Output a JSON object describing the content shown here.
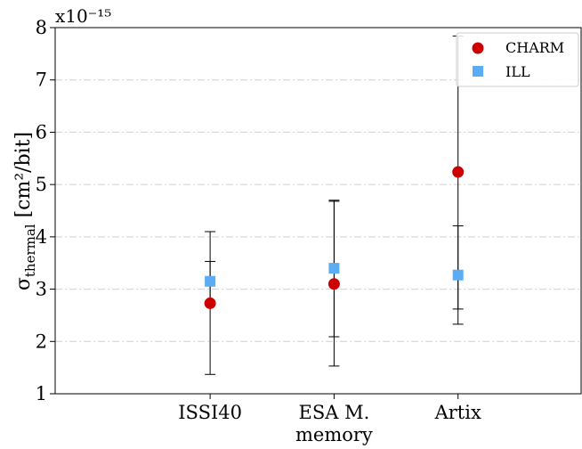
{
  "chart_data": {
    "type": "scatter",
    "categories": [
      "ISSI40",
      "ESA M.\nmemory",
      "Artix"
    ],
    "x": [
      1,
      2,
      3
    ],
    "xlim": [
      -0.25,
      4.0
    ],
    "ylim": [
      1,
      8
    ],
    "yticks": [
      1,
      2,
      3,
      4,
      5,
      6,
      7,
      8
    ],
    "y_multiplier": "x10⁻¹⁵",
    "ylabel": {
      "main": "σ",
      "sub": "thermal",
      "rest": " [cm²/bit]"
    },
    "grid": "y-dashed",
    "legend_position": "top-right",
    "series": [
      {
        "name": "CHARM",
        "marker": "circle",
        "color": "#cc0000",
        "values": [
          2.73,
          3.1,
          5.24
        ],
        "err_low": [
          1.37,
          1.53,
          2.33
        ],
        "err_high": [
          4.1,
          4.68,
          7.84
        ]
      },
      {
        "name": "ILL",
        "marker": "square",
        "color": "#5aadf5",
        "values": [
          3.15,
          3.4,
          3.27
        ],
        "err_low": [
          2.76,
          2.09,
          2.62
        ],
        "err_high": [
          3.53,
          4.7,
          4.21
        ]
      }
    ]
  }
}
